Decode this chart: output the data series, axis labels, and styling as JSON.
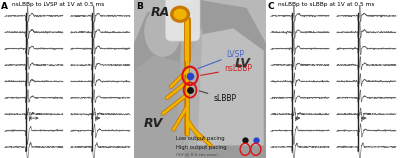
{
  "title_a": "A",
  "title_b": "B",
  "title_c": "C",
  "label_a": "nsLBBp to LVSP at 1V at 0.5 ms",
  "label_c": "nsLBBp to sLBBp at 1V at 0.5 ms",
  "ecg_color": "#666666",
  "bold_line_color": "#111111",
  "lvsp_color": "#4466cc",
  "nslbbp_color": "#cc2222",
  "slbbp_color": "#111111",
  "purkinje_outer": "#c87800",
  "purkinje_inner": "#f0b400",
  "fig_width": 4.0,
  "fig_height": 1.58,
  "dpi": 100
}
